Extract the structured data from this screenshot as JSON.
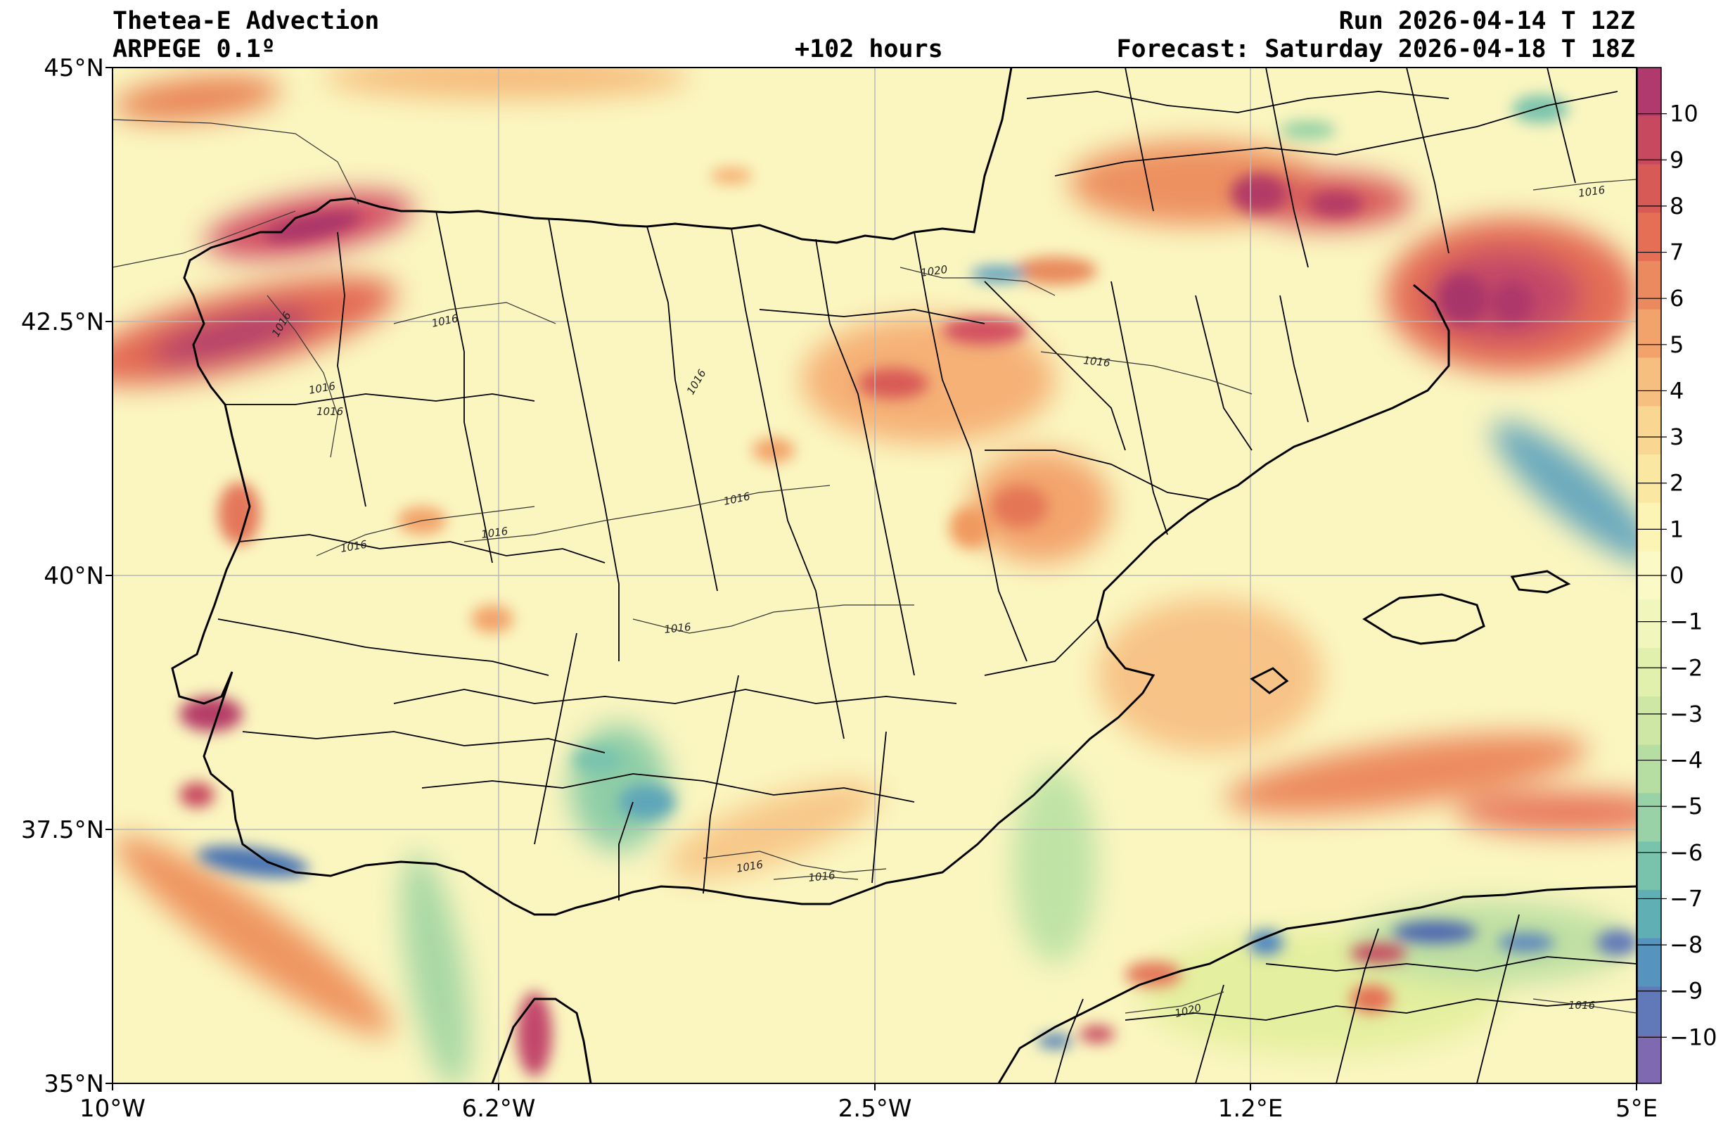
{
  "header": {
    "title": "Thetea-E Advection",
    "model": "ARPEGE 0.1º",
    "lead_time": "+102 hours",
    "run": "Run 2026-04-14 T 12Z",
    "forecast": "Forecast: Saturday 2026-04-18 T 18Z"
  },
  "axes": {
    "lat_ticks": [
      "45°N",
      "42.5°N",
      "40°N",
      "37.5°N",
      "35°N"
    ],
    "lon_ticks": [
      "10°W",
      "6.2°W",
      "2.5°W",
      "1.2°E",
      "5°E"
    ],
    "lat_range": [
      35,
      45
    ],
    "lon_range": [
      -10,
      5
    ]
  },
  "colorbar": {
    "ticks": [
      "10",
      "9",
      "8",
      "7",
      "6",
      "5",
      "4",
      "3",
      "2",
      "1",
      "0",
      "−1",
      "−2",
      "−3",
      "−4",
      "−5",
      "−6",
      "−7",
      "−8",
      "−9",
      "−10"
    ],
    "colors": [
      "#b03a6e",
      "#c6495f",
      "#d85a57",
      "#e46f55",
      "#ec8a5f",
      "#f2a36b",
      "#f7bf7f",
      "#f9d692",
      "#fae8a2",
      "#fbf4b4",
      "#fbf9c6",
      "#f1f6bd",
      "#e2f0ae",
      "#cfe7a5",
      "#b6dea3",
      "#98d2a6",
      "#79c3ad",
      "#5fafb4",
      "#5694bd",
      "#6178b9",
      "#7f6ab1"
    ]
  },
  "isobars": [
    "1016",
    "1016",
    "1016",
    "1016",
    "1016",
    "1016",
    "1016",
    "1020",
    "1016",
    "1016",
    "1016",
    "1016",
    "1020",
    "1016",
    "1016",
    "1016"
  ]
}
